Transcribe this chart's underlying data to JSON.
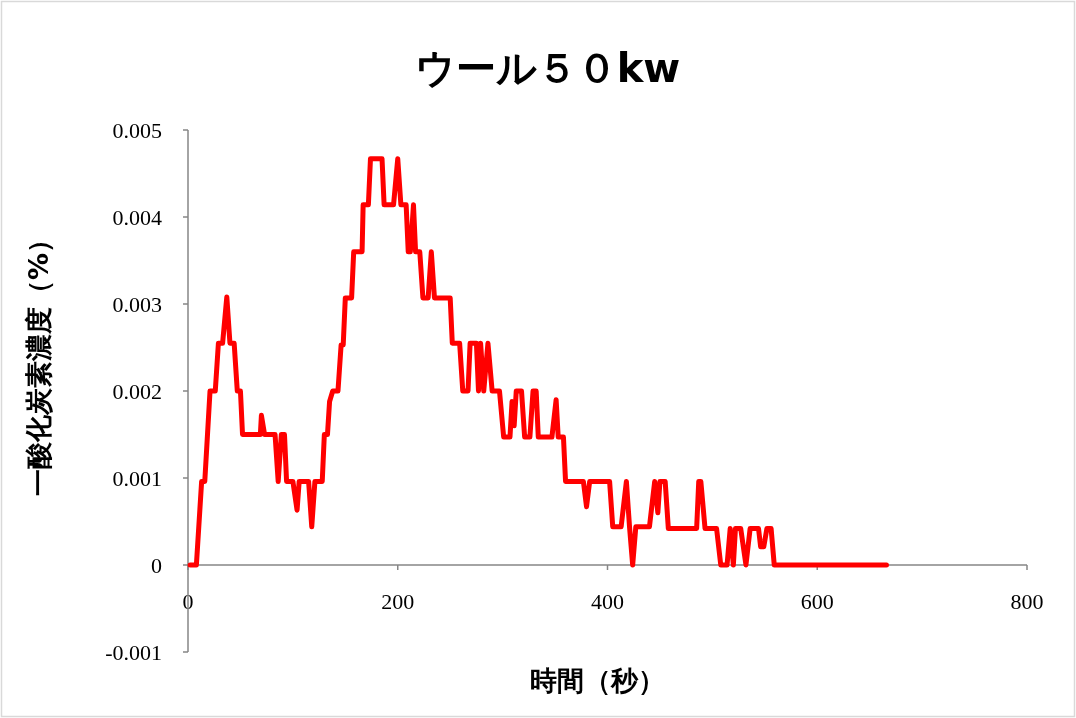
{
  "chart_data": {
    "type": "line",
    "title": "ウール５０kw",
    "xlabel": "時間（秒）",
    "ylabel": "一酸化炭素濃度（%）",
    "xlim": [
      0,
      800
    ],
    "xticks": [
      0,
      200,
      400,
      600,
      800
    ],
    "ylim": [
      -0.001,
      0.005
    ],
    "yticks": [
      -0.001,
      0,
      0.001,
      0.002,
      0.003,
      0.004,
      0.005
    ],
    "grid": false,
    "marker": "none",
    "line_style": "solid",
    "series": [
      {
        "color": "#ff0000",
        "x": [
          2,
          8,
          13,
          16,
          21,
          26,
          29,
          33,
          37,
          40,
          44,
          47,
          50,
          52,
          69,
          70,
          73,
          83,
          86,
          89,
          92,
          94,
          100,
          104,
          106,
          115,
          118,
          121,
          128,
          130,
          133,
          135,
          138,
          143,
          146,
          148,
          150,
          156,
          158,
          166,
          167,
          172,
          174,
          185,
          187,
          196,
          200,
          203,
          208,
          210,
          212,
          215,
          217,
          221,
          224,
          229,
          232,
          235,
          250,
          252,
          259,
          262,
          267,
          269,
          275,
          277,
          279,
          282,
          286,
          290,
          297,
          301,
          307,
          309,
          311,
          313,
          318,
          321,
          326,
          329,
          332,
          334,
          347,
          351,
          353,
          358,
          360,
          377,
          380,
          383,
          402,
          405,
          413,
          418,
          421,
          424,
          427,
          440,
          445,
          448,
          450,
          452,
          455,
          458,
          485,
          487,
          489,
          493,
          504,
          508,
          514,
          517,
          520,
          522,
          527,
          532,
          536,
          544,
          546,
          549,
          552,
          556,
          559,
          666
        ],
        "values": [
          0,
          0,
          0.00096,
          0.00096,
          0.002,
          0.002,
          0.00255,
          0.00255,
          0.00308,
          0.00255,
          0.00255,
          0.002,
          0.002,
          0.0015,
          0.0015,
          0.00172,
          0.0015,
          0.0015,
          0.00096,
          0.0015,
          0.0015,
          0.00096,
          0.00096,
          0.00063,
          0.00096,
          0.00096,
          0.00044,
          0.00096,
          0.00096,
          0.0015,
          0.0015,
          0.00188,
          0.002,
          0.002,
          0.00253,
          0.00253,
          0.00307,
          0.00307,
          0.0036,
          0.0036,
          0.00414,
          0.00414,
          0.00467,
          0.00467,
          0.00414,
          0.00414,
          0.00467,
          0.00414,
          0.00414,
          0.0036,
          0.0036,
          0.00414,
          0.0036,
          0.0036,
          0.00307,
          0.00307,
          0.0036,
          0.00307,
          0.00307,
          0.00255,
          0.00255,
          0.002,
          0.002,
          0.00255,
          0.00255,
          0.002,
          0.00255,
          0.002,
          0.00255,
          0.002,
          0.002,
          0.00147,
          0.00147,
          0.00188,
          0.0016,
          0.002,
          0.002,
          0.00147,
          0.00147,
          0.002,
          0.002,
          0.00147,
          0.00147,
          0.0019,
          0.00147,
          0.00147,
          0.00096,
          0.00096,
          0.00067,
          0.00096,
          0.00096,
          0.00044,
          0.00044,
          0.00096,
          0.00044,
          0,
          0.00044,
          0.00044,
          0.00096,
          0.0006,
          0.00096,
          0.00096,
          0.00096,
          0.00042,
          0.00042,
          0.00096,
          0.00096,
          0.00042,
          0.00042,
          0,
          0,
          0.00042,
          0,
          0.00042,
          0.00042,
          0,
          0.00042,
          0.00042,
          0.00021,
          0.00021,
          0.00042,
          0.00042,
          0,
          0
        ]
      }
    ]
  }
}
